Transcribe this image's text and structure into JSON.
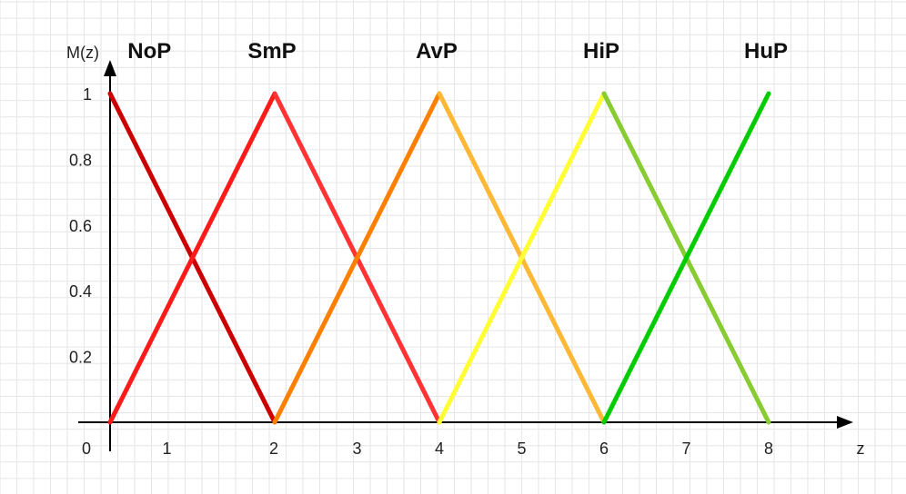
{
  "chart_data": {
    "type": "line",
    "ylabel": "M(z)",
    "xlabel": "z",
    "xlim": [
      0,
      9
    ],
    "ylim": [
      0,
      1
    ],
    "x_ticks": [
      "0",
      "1",
      "2",
      "3",
      "4",
      "5",
      "6",
      "7",
      "8"
    ],
    "y_ticks": [
      "0.2",
      "0.4",
      "0.6",
      "0.8",
      "1"
    ],
    "grid": true,
    "series": [
      {
        "name": "NoP",
        "color": "#cc0000",
        "points": [
          [
            0,
            1
          ],
          [
            2,
            0
          ]
        ]
      },
      {
        "name": "SmP",
        "color": "#ff1a1a",
        "points": [
          [
            0,
            0
          ],
          [
            2,
            1
          ]
        ]
      },
      {
        "name": "SmP",
        "color": "#ff3333",
        "points": [
          [
            2,
            1
          ],
          [
            4,
            0
          ]
        ]
      },
      {
        "name": "AvP",
        "color": "#ff8000",
        "points": [
          [
            2,
            0
          ],
          [
            4,
            1
          ]
        ]
      },
      {
        "name": "AvP",
        "color": "#ffb833",
        "points": [
          [
            4,
            1
          ],
          [
            6,
            0
          ]
        ]
      },
      {
        "name": "HiP",
        "color": "#ffff33",
        "points": [
          [
            4,
            0
          ],
          [
            6,
            1
          ]
        ]
      },
      {
        "name": "HiP",
        "color": "#88cc33",
        "points": [
          [
            6,
            1
          ],
          [
            8,
            0
          ]
        ]
      },
      {
        "name": "HuP",
        "color": "#00cc00",
        "points": [
          [
            6,
            0
          ],
          [
            8,
            1
          ]
        ]
      }
    ],
    "series_labels": [
      {
        "text": "NoP",
        "x": 0.5
      },
      {
        "text": "SmP",
        "x": 2
      },
      {
        "text": "AvP",
        "x": 4
      },
      {
        "text": "HiP",
        "x": 6
      },
      {
        "text": "HuP",
        "x": 8
      }
    ]
  }
}
